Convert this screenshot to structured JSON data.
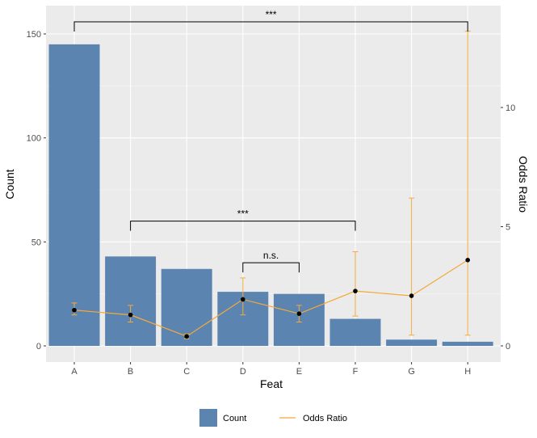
{
  "chart_data": {
    "type": "bar",
    "xlabel": "Feat",
    "ylabel": "Count",
    "y2label": "Odds Ratio",
    "categories": [
      "A",
      "B",
      "C",
      "D",
      "E",
      "F",
      "G",
      "H"
    ],
    "ylim": [
      0,
      150
    ],
    "y_ticks": [
      0,
      50,
      100,
      150
    ],
    "y2lim": [
      0,
      13
    ],
    "y2_ticks": [
      0,
      5,
      10
    ],
    "grid": true,
    "legend_position": "bottom",
    "colors": {
      "bar": "#5b84b1",
      "line": "#f5a93a",
      "point": "#000000",
      "panel": "#ebebeb",
      "grid": "#ffffff"
    },
    "series": [
      {
        "name": "Count",
        "type": "bar",
        "axis": "left",
        "values": [
          145,
          43,
          37,
          26,
          25,
          13,
          3,
          2
        ]
      },
      {
        "name": "Odds Ratio",
        "type": "line",
        "axis": "right",
        "values": [
          1.5,
          1.3,
          0.4,
          1.95,
          1.35,
          2.3,
          2.1,
          3.6
        ],
        "error_low": [
          1.3,
          1.0,
          0.3,
          1.3,
          1.0,
          1.25,
          0.45,
          0.45
        ],
        "error_high": [
          1.8,
          1.7,
          0.5,
          2.85,
          1.7,
          3.95,
          6.2,
          13.2
        ]
      }
    ],
    "annotations": [
      {
        "from": "A",
        "to": "H",
        "y": 152,
        "text": "***"
      },
      {
        "from": "B",
        "to": "F",
        "y": 60,
        "text": "***"
      },
      {
        "from": "D",
        "to": "E",
        "y": 40,
        "text": "n.s."
      }
    ]
  }
}
